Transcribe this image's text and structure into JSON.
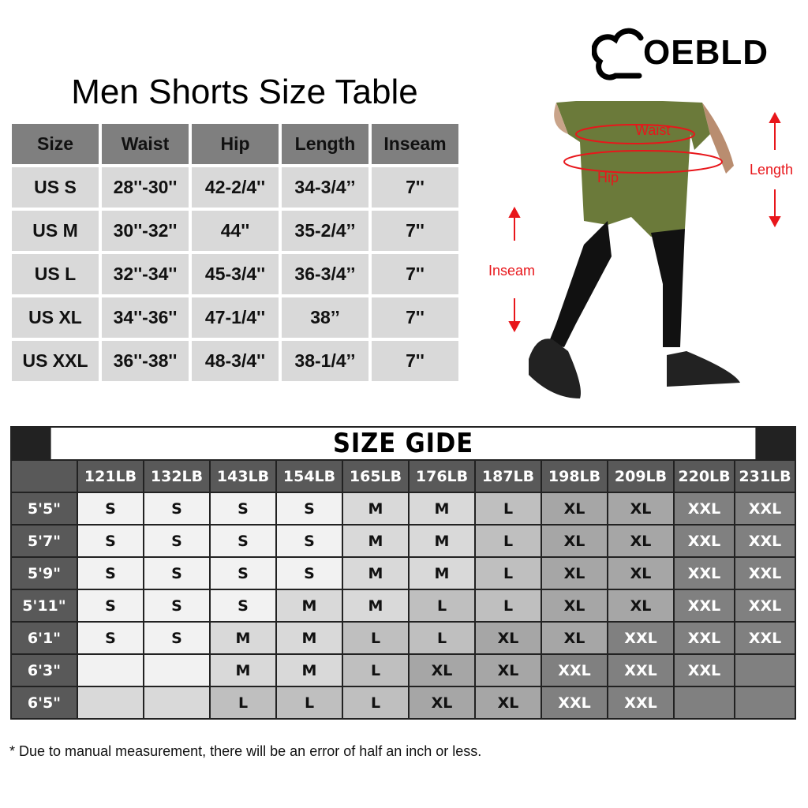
{
  "brand": {
    "name": "OEBLD"
  },
  "size_table": {
    "title": "Men Shorts Size Table",
    "headers": [
      "Size",
      "Waist",
      "Hip",
      "Length",
      "Inseam"
    ],
    "rows": [
      [
        "US S",
        "28''-30''",
        "42-2/4''",
        "34-3/4’’",
        "7''"
      ],
      [
        "US M",
        "30''-32''",
        "44''",
        "35-2/4’’",
        "7''"
      ],
      [
        "US L",
        "32''-34''",
        "45-3/4''",
        "36-3/4’’",
        "7''"
      ],
      [
        "US XL",
        "34''-36''",
        "47-1/4''",
        "38’’",
        "7''"
      ],
      [
        "US XXL",
        "36''-38''",
        "48-3/4''",
        "38-1/4’’",
        "7''"
      ]
    ]
  },
  "figure": {
    "labels": {
      "waist": "Waist",
      "hip": "Hip",
      "length": "Length",
      "inseam": "Inseam"
    },
    "accent": "#e8161b"
  },
  "size_guide": {
    "title": "SIZE GIDE",
    "weights": [
      "121LB",
      "132LB",
      "143LB",
      "154LB",
      "165LB",
      "176LB",
      "187LB",
      "198LB",
      "209LB",
      "220LB",
      "231LB"
    ],
    "heights": [
      "5'5\"",
      "5'7\"",
      "5'9\"",
      "5'11\"",
      "6'1\"",
      "6'3\"",
      "6'5\""
    ],
    "cells": [
      [
        "S",
        "S",
        "S",
        "S",
        "M",
        "M",
        "L",
        "XL",
        "XL",
        "XXL",
        "XXL"
      ],
      [
        "S",
        "S",
        "S",
        "S",
        "M",
        "M",
        "L",
        "XL",
        "XL",
        "XXL",
        "XXL"
      ],
      [
        "S",
        "S",
        "S",
        "S",
        "M",
        "M",
        "L",
        "XL",
        "XL",
        "XXL",
        "XXL"
      ],
      [
        "S",
        "S",
        "S",
        "M",
        "M",
        "L",
        "L",
        "XL",
        "XL",
        "XXL",
        "XXL"
      ],
      [
        "S",
        "S",
        "M",
        "M",
        "L",
        "L",
        "XL",
        "XL",
        "XXL",
        "XXL",
        "XXL"
      ],
      [
        "",
        "",
        "M",
        "M",
        "L",
        "XL",
        "XL",
        "XXL",
        "XXL",
        "XXL",
        ""
      ],
      [
        "",
        "",
        "L",
        "L",
        "L",
        "XL",
        "XL",
        "XXL",
        "XXL",
        "",
        ""
      ]
    ],
    "size_colors": {
      "S": "#f2f2f2",
      "M": "#d9d9d9",
      "L": "#bfbfbf",
      "XL": "#a6a6a6",
      "XXL": "#808080"
    },
    "empty_cell_colors": [
      [
        "#f2f2f2",
        "#f2f2f2"
      ],
      [
        "#d9d9d9",
        "#d9d9d9"
      ]
    ]
  },
  "note": "* Due to manual measurement, there will be an error of half an inch or less."
}
